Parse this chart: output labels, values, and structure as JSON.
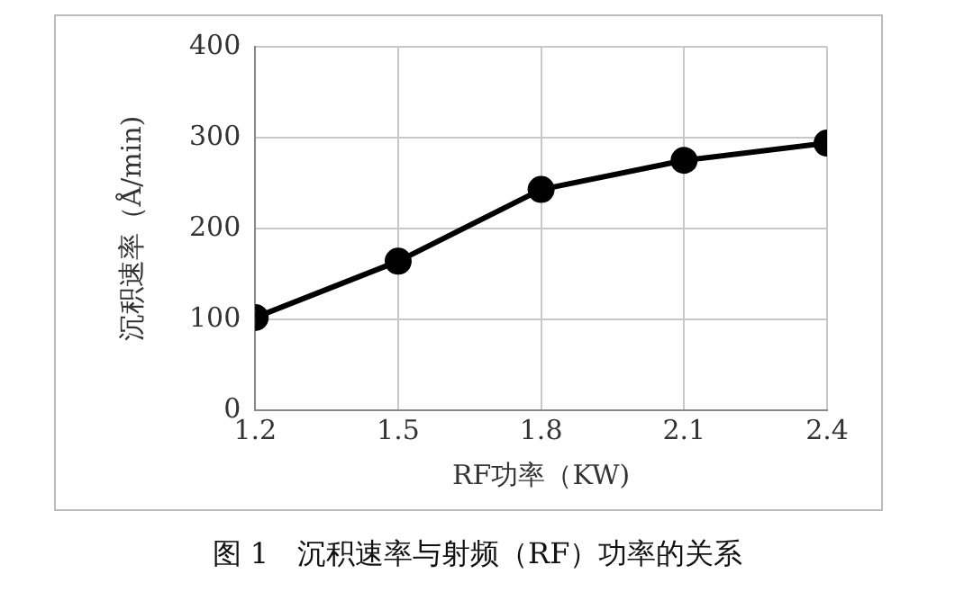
{
  "chart_data": {
    "type": "line",
    "x": [
      1.2,
      1.5,
      1.8,
      2.1,
      2.4
    ],
    "series": [
      {
        "color": "#000000",
        "values": [
          102,
          164,
          243,
          275,
          294
        ]
      }
    ],
    "xlabel": "RF功率（KW)",
    "ylabel": "沉积速率（Å/min)",
    "xlim": [
      1.2,
      2.4
    ],
    "xticks": [
      1.2,
      1.5,
      1.8,
      2.1,
      2.4
    ],
    "ylim": [
      0,
      400
    ],
    "yticks": [
      0,
      100,
      200,
      300,
      400
    ],
    "grid": true,
    "legend": false,
    "marker": "circle",
    "line_style": "solid",
    "annotations": [
      "图 1　沉积速率与射频（RF）功率的关系"
    ]
  }
}
